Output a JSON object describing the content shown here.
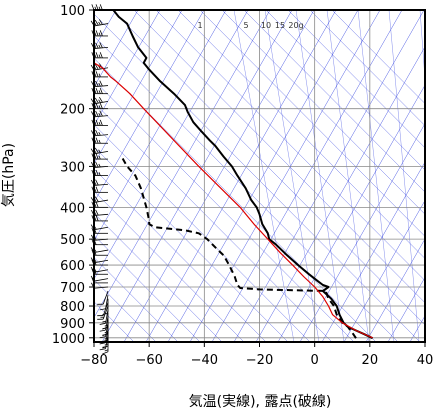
{
  "chart_data": {
    "type": "line",
    "title": "",
    "xlabel": "気温(実線), 露点(破線)",
    "ylabel": "気圧(hPa)",
    "xlim": [
      -80,
      40
    ],
    "ylim": [
      1030,
      100
    ],
    "y_scale": "log",
    "x_ticks": [
      "−80",
      "−60",
      "−40",
      "−20",
      "0",
      "20",
      "40"
    ],
    "x_tick_values": [
      -80,
      -60,
      -40,
      -20,
      0,
      20,
      40
    ],
    "y_ticks": [
      "100",
      "200",
      "300",
      "400",
      "500",
      "600",
      "700",
      "800",
      "900",
      "1000"
    ],
    "y_tick_values": [
      100,
      200,
      300,
      400,
      500,
      600,
      700,
      800,
      900,
      1000
    ],
    "mixing_ratio_labels": [
      "1",
      "5",
      "10",
      "15",
      "20g"
    ],
    "series": [
      {
        "key": "temperature",
        "style": "solid",
        "color": "#000000",
        "points": [
          [
            1003,
            21
          ],
          [
            975,
            18
          ],
          [
            950,
            15
          ],
          [
            925,
            12
          ],
          [
            900,
            10.5
          ],
          [
            850,
            9
          ],
          [
            800,
            8
          ],
          [
            760,
            6
          ],
          [
            720,
            3
          ],
          [
            700,
            5
          ],
          [
            690,
            3
          ],
          [
            670,
            1
          ],
          [
            640,
            -2
          ],
          [
            600,
            -6
          ],
          [
            560,
            -10
          ],
          [
            520,
            -14
          ],
          [
            500,
            -16.5
          ],
          [
            480,
            -17
          ],
          [
            450,
            -19
          ],
          [
            420,
            -20
          ],
          [
            400,
            -21
          ],
          [
            380,
            -23
          ],
          [
            350,
            -25
          ],
          [
            320,
            -28
          ],
          [
            300,
            -30
          ],
          [
            280,
            -33
          ],
          [
            260,
            -36
          ],
          [
            250,
            -38
          ],
          [
            235,
            -41
          ],
          [
            220,
            -44
          ],
          [
            205,
            -46
          ],
          [
            195,
            -47
          ],
          [
            180,
            -51
          ],
          [
            165,
            -56
          ],
          [
            152,
            -60
          ],
          [
            145,
            -62
          ],
          [
            140,
            -61
          ],
          [
            130,
            -64
          ],
          [
            120,
            -66
          ],
          [
            110,
            -68
          ],
          [
            105,
            -71
          ],
          [
            100,
            -73
          ]
        ]
      },
      {
        "key": "dewpoint",
        "style": "dashed",
        "color": "#000000",
        "points": [
          [
            1003,
            15
          ],
          [
            975,
            14
          ],
          [
            950,
            13
          ],
          [
            925,
            12
          ],
          [
            900,
            10
          ],
          [
            850,
            8
          ],
          [
            800,
            7
          ],
          [
            760,
            5
          ],
          [
            720,
            4
          ],
          [
            712,
            -20
          ],
          [
            705,
            -27
          ],
          [
            690,
            -28
          ],
          [
            650,
            -29
          ],
          [
            600,
            -31
          ],
          [
            560,
            -33
          ],
          [
            540,
            -35
          ],
          [
            500,
            -39
          ],
          [
            480,
            -42
          ],
          [
            470,
            -47
          ],
          [
            460,
            -58
          ],
          [
            450,
            -60
          ],
          [
            440,
            -60
          ],
          [
            400,
            -61
          ],
          [
            350,
            -63
          ],
          [
            320,
            -65
          ],
          [
            300,
            -68
          ],
          [
            280,
            -70
          ]
        ]
      },
      {
        "key": "parcel",
        "style": "solid",
        "color": "#dd0000",
        "points": [
          [
            1000,
            21
          ],
          [
            950,
            15
          ],
          [
            900,
            10
          ],
          [
            850,
            6.5
          ],
          [
            800,
            5
          ],
          [
            750,
            3
          ],
          [
            700,
            0
          ],
          [
            650,
            -4
          ],
          [
            600,
            -8
          ],
          [
            550,
            -12.5
          ],
          [
            500,
            -17
          ],
          [
            450,
            -22
          ],
          [
            400,
            -27
          ],
          [
            350,
            -34
          ],
          [
            300,
            -42
          ],
          [
            250,
            -51
          ],
          [
            200,
            -62
          ],
          [
            180,
            -67
          ],
          [
            165,
            -72
          ],
          [
            160,
            -74
          ],
          [
            150,
            -77
          ],
          [
            145,
            -80
          ]
        ]
      }
    ],
    "wind_barbs": [
      {
        "p": 100,
        "speed": 25,
        "dir": 270
      },
      {
        "p": 110,
        "speed": 25,
        "dir": 260
      },
      {
        "p": 120,
        "speed": 25,
        "dir": 270
      },
      {
        "p": 130,
        "speed": 25,
        "dir": 265
      },
      {
        "p": 140,
        "speed": 25,
        "dir": 270
      },
      {
        "p": 150,
        "speed": 25,
        "dir": 260
      },
      {
        "p": 160,
        "speed": 20,
        "dir": 270
      },
      {
        "p": 170,
        "speed": 25,
        "dir": 265
      },
      {
        "p": 180,
        "speed": 25,
        "dir": 270
      },
      {
        "p": 190,
        "speed": 25,
        "dir": 260
      },
      {
        "p": 200,
        "speed": 25,
        "dir": 270
      },
      {
        "p": 210,
        "speed": 25,
        "dir": 265
      },
      {
        "p": 225,
        "speed": 25,
        "dir": 270
      },
      {
        "p": 240,
        "speed": 20,
        "dir": 265
      },
      {
        "p": 255,
        "speed": 20,
        "dir": 270
      },
      {
        "p": 270,
        "speed": 20,
        "dir": 260
      },
      {
        "p": 285,
        "speed": 20,
        "dir": 270
      },
      {
        "p": 300,
        "speed": 20,
        "dir": 265
      },
      {
        "p": 320,
        "speed": 20,
        "dir": 270
      },
      {
        "p": 340,
        "speed": 15,
        "dir": 265
      },
      {
        "p": 360,
        "speed": 15,
        "dir": 270
      },
      {
        "p": 380,
        "speed": 15,
        "dir": 260
      },
      {
        "p": 400,
        "speed": 15,
        "dir": 270
      },
      {
        "p": 420,
        "speed": 15,
        "dir": 265
      },
      {
        "p": 440,
        "speed": 15,
        "dir": 270
      },
      {
        "p": 460,
        "speed": 10,
        "dir": 260
      },
      {
        "p": 480,
        "speed": 10,
        "dir": 270
      },
      {
        "p": 500,
        "speed": 10,
        "dir": 265
      },
      {
        "p": 520,
        "speed": 10,
        "dir": 270
      },
      {
        "p": 540,
        "speed": 10,
        "dir": 260
      },
      {
        "p": 560,
        "speed": 10,
        "dir": 270
      },
      {
        "p": 580,
        "speed": 10,
        "dir": 260
      },
      {
        "p": 600,
        "speed": 10,
        "dir": 270
      },
      {
        "p": 620,
        "speed": 10,
        "dir": 260
      },
      {
        "p": 640,
        "speed": 10,
        "dir": 270
      },
      {
        "p": 660,
        "speed": 5,
        "dir": 260
      },
      {
        "p": 680,
        "speed": 5,
        "dir": 270
      },
      {
        "p": 700,
        "speed": 5,
        "dir": 265
      },
      {
        "p": 720,
        "speed": 5,
        "dir": 200
      },
      {
        "p": 740,
        "speed": 5,
        "dir": 190
      },
      {
        "p": 760,
        "speed": 5,
        "dir": 180
      },
      {
        "p": 780,
        "speed": 5,
        "dir": 200
      },
      {
        "p": 800,
        "speed": 10,
        "dir": 200
      },
      {
        "p": 820,
        "speed": 10,
        "dir": 190
      },
      {
        "p": 840,
        "speed": 10,
        "dir": 180
      },
      {
        "p": 860,
        "speed": 10,
        "dir": 190
      },
      {
        "p": 880,
        "speed": 10,
        "dir": 180
      },
      {
        "p": 900,
        "speed": 10,
        "dir": 190
      },
      {
        "p": 920,
        "speed": 10,
        "dir": 180
      },
      {
        "p": 940,
        "speed": 10,
        "dir": 190
      },
      {
        "p": 960,
        "speed": 10,
        "dir": 180
      },
      {
        "p": 980,
        "speed": 10,
        "dir": 190
      },
      {
        "p": 1000,
        "speed": 10,
        "dir": 180
      }
    ],
    "colors": {
      "frame": "#000000",
      "grid": "#888888",
      "isotherm": "#2233dd",
      "parcel": "#dd0000"
    },
    "grid": true,
    "legend": "none"
  }
}
